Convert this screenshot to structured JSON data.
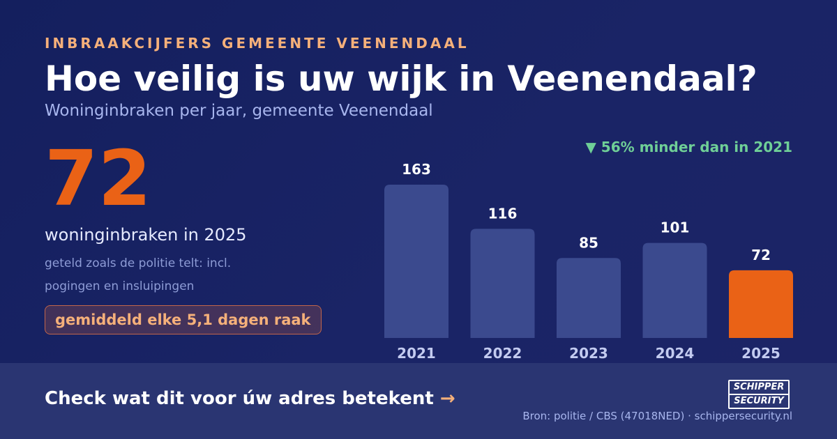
{
  "header": {
    "eyebrow": "INBRAAKCIJFERS GEMEENTE VEENENDAAL",
    "title": "Hoe veilig is uw wijk in Veenendaal?",
    "subtitle": "Woninginbraken per jaar, gemeente Veenendaal"
  },
  "highlight": {
    "number": "72",
    "caption": "woninginbraken in 2025",
    "note": "geteld zoals de politie telt: incl. pogingen en insluipingen",
    "pill": "gemiddeld elke 5,1 dagen raak"
  },
  "change_label": "▼ 56% minder dan in 2021",
  "footer": {
    "cta": "Check wat dit voor úw adres betekent",
    "cta_arrow": "→",
    "logo_line1": "SCHIPPER",
    "logo_line2": "SECURITY",
    "source": "Bron: politie / CBS (47018NED) · schippersecurity.nl"
  },
  "colors": {
    "bar": "#3b4a8e",
    "bar_highlight": "#ea6216",
    "value_label": "#ffffff",
    "year_label": "#c3cbf0",
    "accent": "#f5b07a",
    "positive": "#6fcf97"
  },
  "chart_data": {
    "type": "bar",
    "categories": [
      "2021",
      "2022",
      "2023",
      "2024",
      "2025"
    ],
    "values": [
      163,
      116,
      85,
      101,
      72
    ],
    "highlight_category": "2025",
    "title": "",
    "xlabel": "",
    "ylabel": "",
    "ylim": [
      0,
      163
    ],
    "grid": false,
    "legend": "none"
  }
}
